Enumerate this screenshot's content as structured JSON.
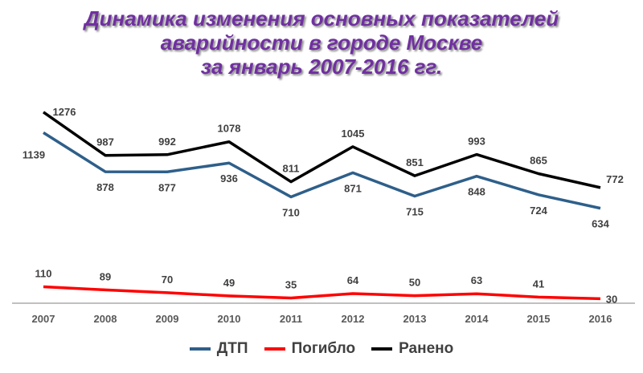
{
  "title_lines": [
    "Динамика изменения основных показателей",
    "аварийности в городе Москве",
    "за январь 2007-2016 гг."
  ],
  "chart_data": {
    "type": "line",
    "title": "Динамика изменения основных показателей аварийности в городе Москве за январь 2007-2016 гг.",
    "xlabel": "",
    "ylabel": "",
    "categories": [
      "2007",
      "2008",
      "2009",
      "2010",
      "2011",
      "2012",
      "2013",
      "2014",
      "2015",
      "2016"
    ],
    "series": [
      {
        "name": "ДТП",
        "color": "#2e5f8a",
        "values": [
          1139,
          878,
          877,
          936,
          710,
          871,
          715,
          848,
          724,
          634
        ]
      },
      {
        "name": "Погибло",
        "color": "#ff0000",
        "values": [
          110,
          89,
          70,
          49,
          35,
          64,
          50,
          63,
          41,
          30
        ]
      },
      {
        "name": "Ранено",
        "color": "#000000",
        "values": [
          1276,
          987,
          992,
          1078,
          811,
          1045,
          851,
          993,
          865,
          772
        ]
      }
    ],
    "legend_position": "bottom",
    "grid": false
  }
}
